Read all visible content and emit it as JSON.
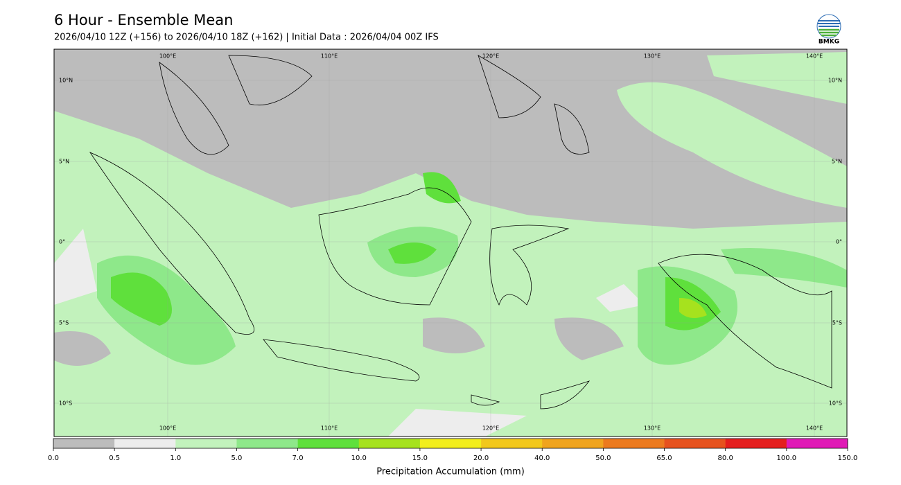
{
  "header": {
    "title": "6 Hour - Ensemble Mean",
    "subtitle": "2026/04/10 12Z (+156) to 2026/04/10 18Z (+162) | Initial Data : 2026/04/04 00Z IFS",
    "logo_text": "BMKG"
  },
  "map": {
    "lon_labels": [
      "100°E",
      "110°E",
      "120°E",
      "130°E",
      "140°E"
    ],
    "lat_labels": [
      "10°N",
      "5°N",
      "0°",
      "5°S",
      "10°S"
    ]
  },
  "colorbar": {
    "label": "Precipitation Accumulation (mm)",
    "ticks": [
      "0.0",
      "0.5",
      "1.0",
      "5.0",
      "7.0",
      "10.0",
      "15.0",
      "20.0",
      "40.0",
      "50.0",
      "65.0",
      "80.0",
      "100.0",
      "150.0"
    ],
    "colors": [
      "#bcbcbc",
      "#ededed",
      "#c2f2bc",
      "#8ee88a",
      "#5fe03c",
      "#a6e21e",
      "#f2ee1c",
      "#f2c81c",
      "#f0a41e",
      "#ec7a1e",
      "#e6521e",
      "#e41e1e",
      "#e01ab6"
    ]
  }
}
